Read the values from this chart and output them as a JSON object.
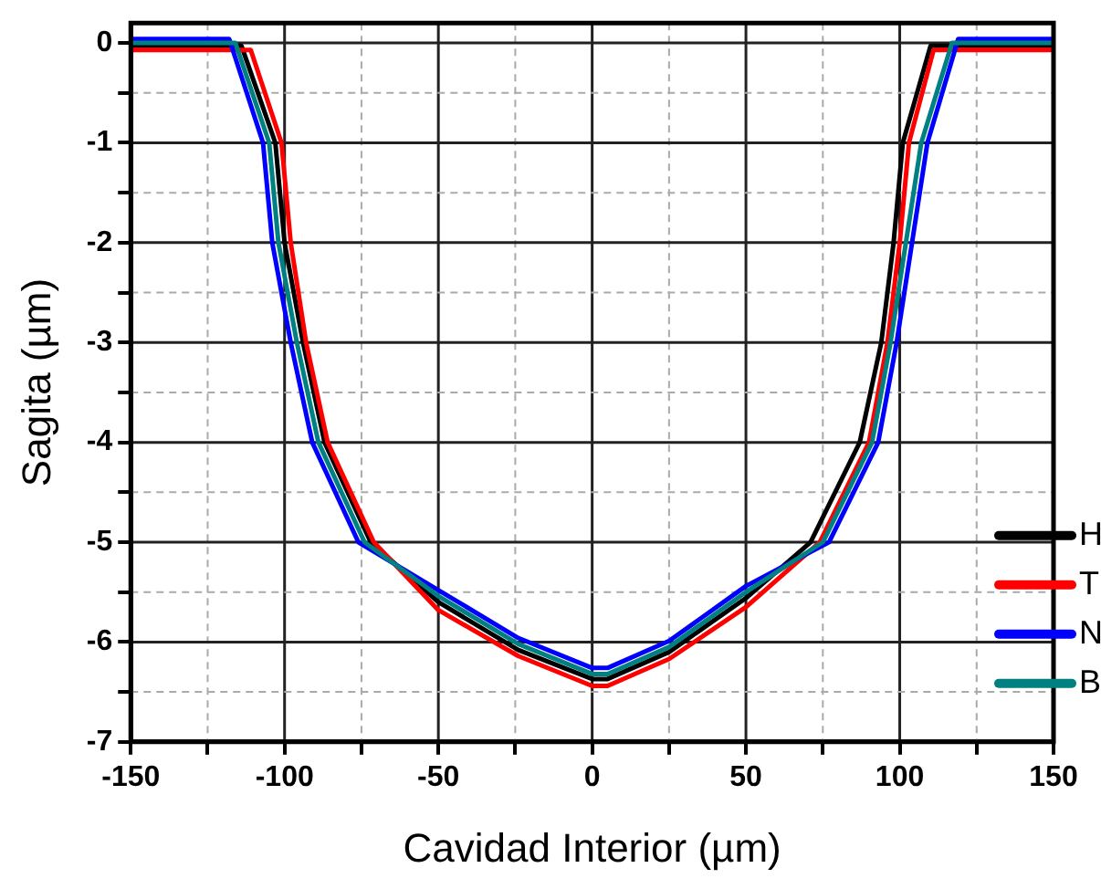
{
  "chart_data": {
    "type": "line",
    "xlabel": "Cavidad Interior (µm)",
    "ylabel": "Sagita (µm)",
    "xlim": [
      -150,
      150
    ],
    "ylim": [
      -7,
      0.2
    ],
    "xticks": [
      -150,
      {
        "value": -125,
        "label": null
      },
      -100,
      {
        "value": -75,
        "label": null
      },
      -50,
      {
        "value": -25,
        "label": null
      },
      0,
      {
        "value": 25,
        "label": null
      },
      50,
      {
        "value": 75,
        "label": null
      },
      100,
      {
        "value": 125,
        "label": null
      },
      150
    ],
    "yticks": [
      -7,
      {
        "value": -6.5,
        "label": null
      },
      -6,
      {
        "value": -5.5,
        "label": null
      },
      -5,
      {
        "value": -4.5,
        "label": null
      },
      -4,
      {
        "value": -3.5,
        "label": null
      },
      -3,
      {
        "value": -2.5,
        "label": null
      },
      -2,
      {
        "value": -1.5,
        "label": null
      },
      -1,
      {
        "value": -0.5,
        "label": null
      },
      0
    ],
    "grid": true,
    "legend": "bottom right",
    "marker": "none",
    "line_style": "solid",
    "series": [
      {
        "name": "H",
        "color": "#000000",
        "x": [
          -150,
          -130,
          -114,
          -103,
          -100,
          -94,
          -87,
          -72,
          -50,
          -24,
          0,
          5,
          25,
          50,
          71,
          87,
          94,
          98,
          101,
          110,
          130,
          150
        ],
        "values": [
          -0.03,
          -0.03,
          -0.03,
          -1,
          -2,
          -3,
          -4,
          -5,
          -5.6,
          -6.08,
          -6.37,
          -6.37,
          -6.1,
          -5.56,
          -5,
          -4,
          -3,
          -2,
          -1,
          -0.03,
          -0.03,
          -0.03
        ]
      },
      {
        "name": "T",
        "color": "#ff0000",
        "x": [
          -150,
          -130,
          -111,
          -101,
          -98,
          -93,
          -86,
          -71,
          -50,
          -24,
          0,
          5,
          25,
          50,
          74,
          90,
          96,
          100,
          103,
          111,
          130,
          150
        ],
        "values": [
          -0.07,
          -0.07,
          -0.07,
          -1,
          -2,
          -3,
          -4,
          -5,
          -5.68,
          -6.14,
          -6.44,
          -6.44,
          -6.17,
          -5.65,
          -5,
          -4,
          -3,
          -2,
          -1,
          -0.07,
          -0.07,
          -0.07
        ]
      },
      {
        "name": "N",
        "color": "#0000ff",
        "x": [
          -150,
          -130,
          -118,
          -107,
          -104,
          -98,
          -91,
          -76,
          -50,
          -24,
          0,
          5,
          25,
          50,
          77,
          93,
          99,
          104,
          109,
          119,
          130,
          150
        ],
        "values": [
          0.04,
          0.04,
          0.04,
          -1,
          -2,
          -3,
          -4,
          -5,
          -5.48,
          -5.96,
          -6.26,
          -6.26,
          -5.99,
          -5.44,
          -5,
          -4,
          -3,
          -2,
          -1,
          0.04,
          0.04,
          0.04
        ]
      },
      {
        "name": "B",
        "color": "#008080",
        "x": [
          -150,
          -130,
          -116,
          -105,
          -102,
          -96,
          -89,
          -74,
          -50,
          -24,
          0,
          5,
          25,
          50,
          75,
          91,
          97,
          102,
          107,
          117,
          130,
          150
        ],
        "values": [
          0,
          0,
          0,
          -1,
          -2,
          -3,
          -4,
          -5,
          -5.54,
          -6.02,
          -6.32,
          -6.32,
          -6.05,
          -5.5,
          -5,
          -4,
          -3,
          -2,
          -1,
          0,
          0,
          0
        ]
      }
    ]
  }
}
